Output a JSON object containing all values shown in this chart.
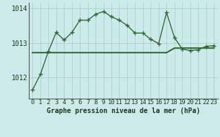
{
  "title": "Graphe pression niveau de la mer (hPa)",
  "bg_color": "#cceaea",
  "grid_color": "#aacece",
  "line_color": "#2d6a2d",
  "x_data": [
    0,
    1,
    2,
    3,
    4,
    5,
    6,
    7,
    8,
    9,
    10,
    11,
    12,
    13,
    14,
    15,
    16,
    17,
    18,
    19,
    20,
    21,
    22,
    23
  ],
  "y_wavy": [
    1011.65,
    1012.1,
    1012.75,
    1013.3,
    1013.08,
    1013.3,
    1013.65,
    1013.65,
    1013.82,
    1013.9,
    1013.75,
    1013.65,
    1013.5,
    1013.28,
    1013.28,
    1013.1,
    1012.98,
    1013.87,
    1013.15,
    1012.82,
    1012.78,
    1012.8,
    1012.9,
    1012.92
  ],
  "y_flat": [
    1012.72,
    1012.72,
    1012.72,
    1012.72,
    1012.72,
    1012.72,
    1012.72,
    1012.72,
    1012.72,
    1012.72,
    1012.72,
    1012.72,
    1012.72,
    1012.72,
    1012.72,
    1012.72,
    1012.72,
    1012.72,
    1012.85,
    1012.85,
    1012.85,
    1012.85,
    1012.85,
    1012.85
  ],
  "ylim": [
    1011.4,
    1014.15
  ],
  "yticks": [
    1012,
    1013,
    1014
  ],
  "xlim": [
    -0.5,
    23.5
  ],
  "tick_fontsize": 7,
  "title_fontsize": 7,
  "marker_size": 2.5,
  "linewidth": 1.0,
  "flat_linewidth": 1.5
}
